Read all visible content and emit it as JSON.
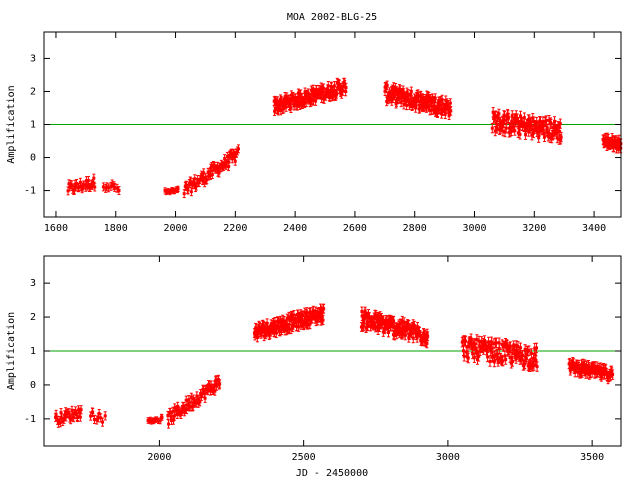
{
  "title": "MOA 2002-BLG-25",
  "colors": {
    "points": "#ff0000",
    "reference_line": "#00a000",
    "axes": "#000000"
  },
  "chart_data": [
    {
      "type": "scatter",
      "title": "MOA 2002-BLG-25",
      "xlabel": "",
      "ylabel": "Amplification",
      "xlim": [
        1560,
        3490
      ],
      "ylim": [
        -1.8,
        3.8
      ],
      "x_ticks": [
        1600,
        1800,
        2000,
        2200,
        2400,
        2600,
        2800,
        3000,
        3200,
        3400
      ],
      "y_ticks": [
        -1,
        0,
        1,
        2,
        3
      ],
      "reference_line": 1,
      "error_bars": true,
      "segments": [
        {
          "x0": 1640,
          "x1": 1730,
          "y0": -0.95,
          "y1": -0.75,
          "n": 30,
          "spread": 0.15,
          "err": 0.12
        },
        {
          "x0": 1760,
          "x1": 1810,
          "y0": -0.8,
          "y1": -0.95,
          "n": 10,
          "spread": 0.12,
          "err": 0.12
        },
        {
          "x0": 1965,
          "x1": 2010,
          "y0": -1.05,
          "y1": -1.0,
          "n": 12,
          "spread": 0.06,
          "err": 0.08
        },
        {
          "x0": 2030,
          "x1": 2210,
          "y0": -1.0,
          "y1": 0.1,
          "n": 70,
          "spread": 0.18,
          "err": 0.12
        },
        {
          "x0": 2330,
          "x1": 2570,
          "y0": 1.55,
          "y1": 2.15,
          "n": 150,
          "spread": 0.2,
          "err": 0.13
        },
        {
          "x0": 2700,
          "x1": 2920,
          "y0": 1.95,
          "y1": 1.5,
          "n": 150,
          "spread": 0.25,
          "err": 0.13
        },
        {
          "x0": 3060,
          "x1": 3290,
          "y0": 1.1,
          "y1": 0.8,
          "n": 130,
          "spread": 0.3,
          "err": 0.14
        },
        {
          "x0": 3430,
          "x1": 3490,
          "y0": 0.5,
          "y1": 0.4,
          "n": 40,
          "spread": 0.15,
          "err": 0.14
        }
      ]
    },
    {
      "type": "scatter",
      "xlabel": "JD - 2450000",
      "ylabel": "Amplification",
      "xlim": [
        1600,
        3600
      ],
      "ylim": [
        -1.8,
        3.8
      ],
      "x_ticks": [
        2000,
        2500,
        3000,
        3500
      ],
      "y_ticks": [
        -1,
        0,
        1,
        2,
        3
      ],
      "reference_line": 1,
      "error_bars": true,
      "segments": [
        {
          "x0": 1640,
          "x1": 1730,
          "y0": -1.0,
          "y1": -0.8,
          "n": 30,
          "spread": 0.15,
          "err": 0.12
        },
        {
          "x0": 1760,
          "x1": 1810,
          "y0": -0.85,
          "y1": -1.0,
          "n": 10,
          "spread": 0.12,
          "err": 0.12
        },
        {
          "x0": 1960,
          "x1": 2010,
          "y0": -1.05,
          "y1": -1.0,
          "n": 12,
          "spread": 0.06,
          "err": 0.08
        },
        {
          "x0": 2030,
          "x1": 2210,
          "y0": -1.0,
          "y1": 0.1,
          "n": 70,
          "spread": 0.18,
          "err": 0.12
        },
        {
          "x0": 2330,
          "x1": 2570,
          "y0": 1.55,
          "y1": 2.1,
          "n": 150,
          "spread": 0.2,
          "err": 0.13
        },
        {
          "x0": 2700,
          "x1": 2930,
          "y0": 1.95,
          "y1": 1.45,
          "n": 150,
          "spread": 0.25,
          "err": 0.13
        },
        {
          "x0": 3050,
          "x1": 3310,
          "y0": 1.1,
          "y1": 0.8,
          "n": 130,
          "spread": 0.3,
          "err": 0.14
        },
        {
          "x0": 3420,
          "x1": 3570,
          "y0": 0.55,
          "y1": 0.3,
          "n": 80,
          "spread": 0.15,
          "err": 0.14
        }
      ]
    }
  ]
}
